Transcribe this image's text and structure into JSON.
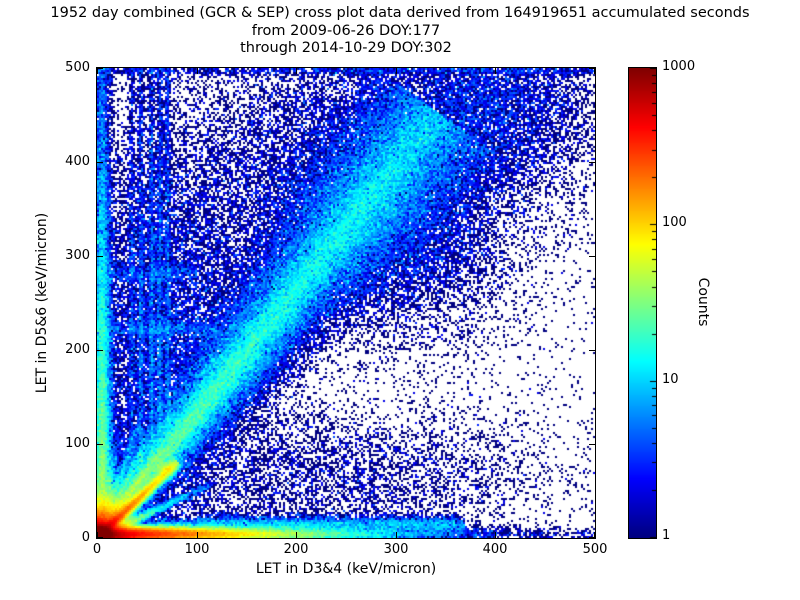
{
  "chart_data": {
    "type": "heatmap",
    "title_lines": [
      "1952 day combined (GCR & SEP) cross plot data derived from 164919651 accumulated seconds",
      "from 2009-06-26 DOY:177",
      "through 2014-10-29 DOY:302"
    ],
    "xlabel": "LET in D3&4 (keV/micron)",
    "ylabel": "LET in D5&6 (keV/micron)",
    "xlim": [
      0,
      500
    ],
    "ylim": [
      0,
      500
    ],
    "xticks": [
      0,
      100,
      200,
      300,
      400,
      500
    ],
    "yticks": [
      0,
      100,
      200,
      300,
      400,
      500
    ],
    "grid": false,
    "background": "#ffffff",
    "colormap": "jet",
    "colorbar": {
      "label": "Counts",
      "scale": "log",
      "min": 1,
      "max": 1000,
      "tick_values": [
        1,
        10,
        100,
        1000
      ],
      "tick_labels": [
        "1",
        "10",
        "100",
        "1000"
      ],
      "position": "right"
    },
    "density_model": {
      "description": "2D histogram density components in data units (keV/micron), counts per 2x2 bin",
      "seed": 42,
      "components": [
        {
          "kind": "corner",
          "amp": 3000,
          "sx": 9,
          "sy": 9
        },
        {
          "kind": "hridge",
          "y": 4,
          "width": 4,
          "amp": 700,
          "xdecay": 70,
          "x0": 0,
          "x1": 500
        },
        {
          "kind": "hridge",
          "y": 14,
          "width": 4,
          "amp": 6,
          "x0": 60,
          "x1": 370
        },
        {
          "kind": "hridge",
          "y": 16,
          "width": 5,
          "amp": 3,
          "x0": 100,
          "x1": 360
        },
        {
          "kind": "vridge",
          "x": 5,
          "width": 4,
          "amp": 50,
          "ydecay": 200,
          "y0": 0,
          "y1": 500
        },
        {
          "kind": "vridge",
          "x": 13,
          "width": 3,
          "amp": 8,
          "ydecay": 150,
          "y0": 0,
          "y1": 500
        },
        {
          "kind": "ridge",
          "from": [
            0,
            0
          ],
          "to": [
            78,
            78
          ],
          "width": 3,
          "amp": 500,
          "decay": 45
        },
        {
          "kind": "blob",
          "x": 70,
          "y": 73,
          "sx": 5,
          "sy": 5,
          "amp": 35
        },
        {
          "kind": "ridge",
          "from": [
            0,
            0
          ],
          "to": [
            340,
            450
          ],
          "width": 7,
          "wgrow": 0.055,
          "amp": 18,
          "decay": 420
        },
        {
          "kind": "ridge",
          "from": [
            10,
            14
          ],
          "to": [
            340,
            448
          ],
          "width": 3.5,
          "wgrow": 0.02,
          "amp": 14,
          "decay": 380
        },
        {
          "kind": "blob",
          "x": 390,
          "y": 455,
          "sx": 60,
          "sy": 45,
          "amp": 2.2
        },
        {
          "kind": "blob",
          "x": 300,
          "y": 330,
          "sx": 60,
          "sy": 60,
          "amp": 2.0
        },
        {
          "kind": "blob",
          "x": 240,
          "y": 400,
          "sx": 80,
          "sy": 70,
          "amp": 1.2
        },
        {
          "kind": "ridge",
          "from": [
            0,
            0
          ],
          "to": [
            62,
            92
          ],
          "width": 2.5,
          "amp": 110,
          "decay": 38
        },
        {
          "kind": "ridge",
          "from": [
            0,
            0
          ],
          "to": [
            52,
            106
          ],
          "width": 2.5,
          "amp": 90,
          "decay": 36
        },
        {
          "kind": "ridge",
          "from": [
            0,
            0
          ],
          "to": [
            40,
            116
          ],
          "width": 2.5,
          "amp": 75,
          "decay": 34
        },
        {
          "kind": "ridge",
          "from": [
            0,
            0
          ],
          "to": [
            27,
            122
          ],
          "width": 2.2,
          "amp": 60,
          "decay": 32
        },
        {
          "kind": "ridge",
          "from": [
            0,
            0
          ],
          "to": [
            112,
            56
          ],
          "width": 2.5,
          "amp": 90,
          "decay": 40
        },
        {
          "kind": "vridge",
          "x": 35,
          "width": 1.8,
          "amp": 2.5,
          "ydecay": 700,
          "y0": 60,
          "y1": 500
        },
        {
          "kind": "vridge",
          "x": 44,
          "width": 1.8,
          "amp": 3.5,
          "ydecay": 700,
          "y0": 60,
          "y1": 500
        },
        {
          "kind": "vridge",
          "x": 55,
          "width": 1.8,
          "amp": 4.5,
          "ydecay": 700,
          "y0": 70,
          "y1": 500
        },
        {
          "kind": "vridge",
          "x": 63,
          "width": 1.8,
          "amp": 4.0,
          "ydecay": 700,
          "y0": 80,
          "y1": 500
        },
        {
          "kind": "vridge",
          "x": 71,
          "width": 1.8,
          "amp": 3.5,
          "ydecay": 700,
          "y0": 90,
          "y1": 500
        },
        {
          "kind": "hridge",
          "y": 222,
          "width": 5,
          "amp": 2.5,
          "x0": 0,
          "x1": 120
        },
        {
          "kind": "hridge",
          "y": 282,
          "width": 5,
          "amp": 1.8,
          "x0": 0,
          "x1": 100
        },
        {
          "kind": "blob",
          "x": 70,
          "y": 220,
          "sx": 55,
          "sy": 110,
          "amp": 1.8
        },
        {
          "kind": "blob",
          "x": 250,
          "y": 65,
          "sx": 110,
          "sy": 40,
          "amp": 0.7
        },
        {
          "kind": "hridge",
          "y": 497,
          "width": 2.5,
          "amp": 1.5,
          "x0": 0,
          "x1": 500
        },
        {
          "kind": "uniform",
          "amp": 0.05,
          "x0": 0,
          "x1": 500,
          "y0": 0,
          "y1": 500
        },
        {
          "kind": "uniform",
          "amp": 0.12,
          "x0": 0,
          "x1": 220,
          "y0": 0,
          "y1": 500
        },
        {
          "kind": "uniform",
          "amp": 0.06,
          "x0": 220,
          "x1": 500,
          "y0": 300,
          "y1": 500
        }
      ]
    }
  }
}
